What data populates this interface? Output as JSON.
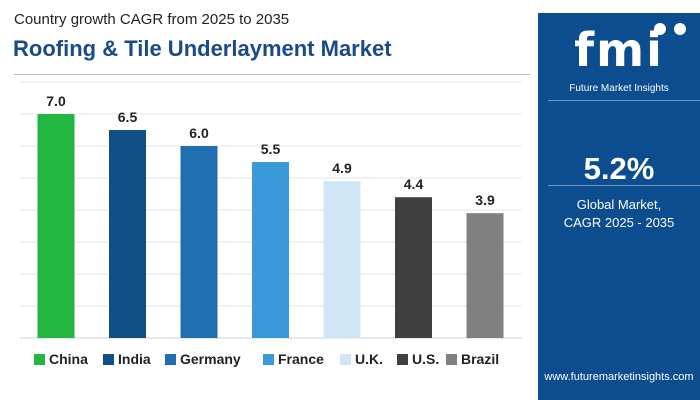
{
  "header": {
    "subtitle": "Country growth CAGR from 2025 to 2035",
    "title": "Roofing & Tile Underlayment Market"
  },
  "side_panel": {
    "logo_text": "fmi",
    "logo_caption": "Future Market Insights",
    "value": "5.2%",
    "label_line1": "Global Market,",
    "label_line2": "CAGR 2025 - 2035",
    "website": "www.futuremarketinsights.com",
    "background_color": "#0b4d8e"
  },
  "chart_data": {
    "type": "bar",
    "categories": [
      "China",
      "India",
      "Germany",
      "France",
      "U.K.",
      "U.S.",
      "Brazil"
    ],
    "values": [
      7.0,
      6.5,
      6.0,
      5.5,
      4.9,
      4.4,
      3.9
    ],
    "value_labels": [
      "7.0",
      "6.5",
      "6.0",
      "5.5",
      "4.9",
      "4.4",
      "3.9"
    ],
    "colors": [
      "#22b540",
      "#0f4f86",
      "#1f6eaf",
      "#3a9ad9",
      "#cfe6f6",
      "#404040",
      "#808080"
    ],
    "title": "Roofing & Tile Underlayment Market",
    "subtitle": "Country growth CAGR from 2025 to 2035",
    "ylim": [
      0,
      8
    ],
    "grid": true,
    "legend_position": "bottom"
  }
}
